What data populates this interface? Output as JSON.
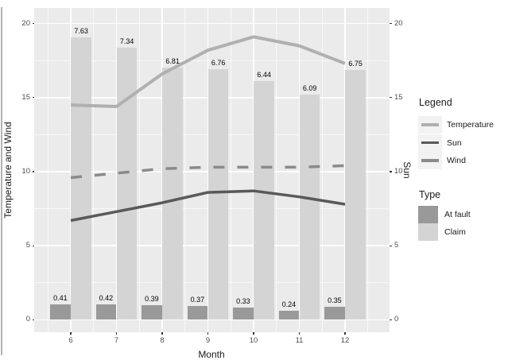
{
  "chart_data": {
    "type": "bar",
    "title": "",
    "xlabel": "Month",
    "ylabel_left": "Temperature and Wind",
    "ylabel_right": "Sun",
    "x": [
      6,
      7,
      8,
      9,
      10,
      11,
      12
    ],
    "x_tick_labels": [
      "6",
      "7",
      "8",
      "9",
      "10",
      "11",
      "12"
    ],
    "y_ticks": [
      0,
      5,
      10,
      15,
      20
    ],
    "y_tick_labels": [
      "0",
      "5",
      "10",
      "15",
      "20"
    ],
    "ylim": [
      -1,
      21
    ],
    "grid": true,
    "bar_series": [
      {
        "name": "At fault",
        "values": [
          0.41,
          0.42,
          0.39,
          0.37,
          0.33,
          0.24,
          0.35
        ],
        "labels": [
          "0.41",
          "0.42",
          "0.39",
          "0.37",
          "0.33",
          "0.24",
          "0.35"
        ],
        "color": "#999999"
      },
      {
        "name": "Claim",
        "values": [
          7.63,
          7.34,
          6.81,
          6.76,
          6.44,
          6.09,
          6.75
        ],
        "labels": [
          "7.63",
          "7.34",
          "6.81",
          "6.76",
          "6.44",
          "6.09",
          "6.75"
        ],
        "color": "#d4d4d4"
      }
    ],
    "bar_axis_scale_factor": 2.5,
    "line_series": [
      {
        "name": "Temperature",
        "values": [
          14.5,
          14.4,
          16.6,
          18.2,
          19.1,
          18.5,
          17.3
        ],
        "color": "#b0b0b0",
        "dashed": false,
        "width": 4
      },
      {
        "name": "Sun",
        "values": [
          6.7,
          7.3,
          7.9,
          8.6,
          8.7,
          8.3,
          7.8
        ],
        "color": "#595959",
        "dashed": false,
        "width": 3.5
      },
      {
        "name": "Wind",
        "values": [
          9.6,
          9.9,
          10.2,
          10.3,
          10.3,
          10.3,
          10.4
        ],
        "color": "#8a8a8a",
        "dashed": true,
        "width": 3.5
      }
    ],
    "legend_position": "right"
  },
  "legend": {
    "lines_title": "Legend",
    "line_entries": [
      "Temperature",
      "Sun",
      "Wind"
    ],
    "bars_title": "Type",
    "bar_entries": [
      "At fault",
      "Claim"
    ]
  },
  "colors": {
    "panel_background": "#ebebeb",
    "gridline": "#ffffff",
    "tick_text": "#4d4d4d",
    "title_text": "#1a1a1a",
    "at_fault_bar": "#999999",
    "claim_bar": "#d4d4d4",
    "temperature_line": "#b0b0b0",
    "sun_line": "#595959",
    "wind_line": "#8a8a8a",
    "legend_key_background": "#f2f2f2",
    "left_border_line": "#b3b3b3"
  }
}
